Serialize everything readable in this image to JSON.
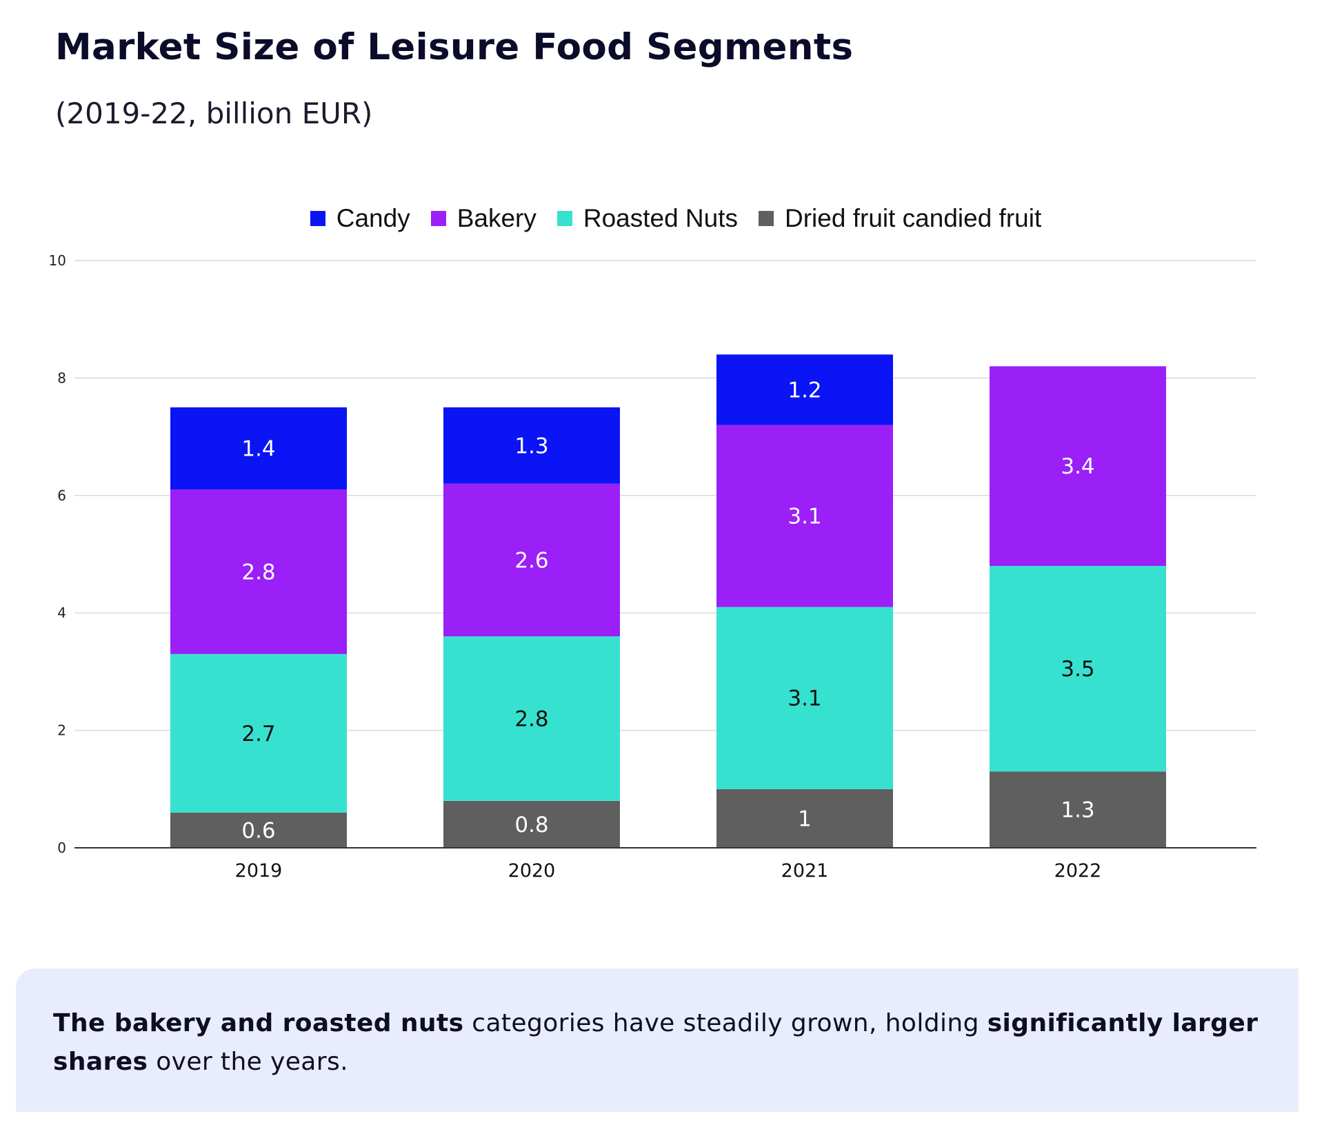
{
  "header": {
    "title": "Market Size of Leisure Food Segments",
    "subtitle": "(2019-22, billion EUR)"
  },
  "colors": {
    "candy": "#0a14f5",
    "bakery": "#9b1ff7",
    "roasted_nuts": "#37e1d0",
    "dried_fruit": "#5f5f5f",
    "callout_bg": "#e8ecfc"
  },
  "chart_data": {
    "type": "bar",
    "stacked": true,
    "title": "Market Size of Leisure Food Segments",
    "subtitle": "(2019-22, billion EUR)",
    "xlabel": "",
    "ylabel": "",
    "categories": [
      "2019",
      "2020",
      "2021",
      "2022"
    ],
    "yticks": [
      "0",
      "2",
      "4",
      "6",
      "8",
      "10"
    ],
    "ylim": [
      0,
      10
    ],
    "grid": true,
    "legend_position": "top-center",
    "series": [
      {
        "name": "Dried fruit candied fruit",
        "color": "#5f5f5f",
        "label_color": "#ffffff",
        "values": [
          0.6,
          0.8,
          1,
          1.3
        ],
        "labels": [
          "0.6",
          "0.8",
          "1",
          "1.3"
        ]
      },
      {
        "name": "Roasted Nuts",
        "color": "#37e1d0",
        "label_color": "#111111",
        "values": [
          2.7,
          2.8,
          3.1,
          3.5
        ],
        "labels": [
          "2.7",
          "2.8",
          "3.1",
          "3.5"
        ]
      },
      {
        "name": "Bakery",
        "color": "#9b1ff7",
        "label_color": "#ffffff",
        "values": [
          2.8,
          2.6,
          3.1,
          3.4
        ],
        "labels": [
          "2.8",
          "2.6",
          "3.1",
          "3.4"
        ]
      },
      {
        "name": "Candy",
        "color": "#0a14f5",
        "label_color": "#ffffff",
        "values": [
          1.4,
          1.3,
          1.2,
          null
        ],
        "labels": [
          "1.4",
          "1.3",
          "1.2",
          ""
        ]
      }
    ],
    "legend_order": [
      "Candy",
      "Bakery",
      "Roasted Nuts",
      "Dried fruit candied fruit"
    ]
  },
  "legend": [
    {
      "label": "Candy",
      "color": "#0a14f5"
    },
    {
      "label": "Bakery",
      "color": "#9b1ff7"
    },
    {
      "label": "Roasted Nuts",
      "color": "#37e1d0"
    },
    {
      "label": "Dried fruit candied fruit",
      "color": "#5f5f5f"
    }
  ],
  "callout": {
    "bold_1": "The bakery and roasted nuts",
    "text_1": " categories have steadily grown, holding ",
    "bold_2": "significantly larger shares",
    "text_2": " over the years."
  }
}
